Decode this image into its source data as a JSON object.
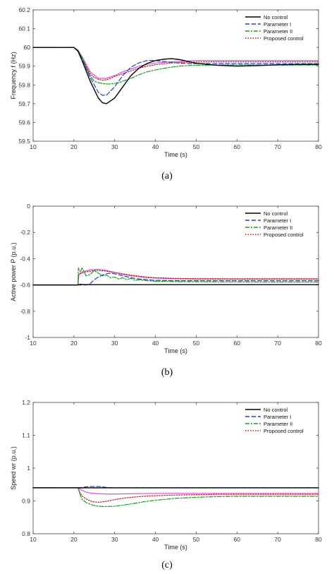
{
  "chart_data": [
    {
      "type": "line",
      "panel_label": "(a)",
      "title": "",
      "xlabel": "Time (s)",
      "ylabel": "Frequency f (Hz)",
      "xlim": [
        10,
        80
      ],
      "ylim": [
        59.5,
        60.2
      ],
      "xticks": [
        10,
        20,
        30,
        40,
        50,
        60,
        70,
        80
      ],
      "yticks": [
        59.5,
        59.6,
        59.7,
        59.8,
        59.9,
        60,
        60.1,
        60.2
      ],
      "ytick_labels": [
        "59.5",
        "59.6",
        "59.7",
        "59.8",
        "59.9",
        "60",
        "60.1",
        "60.2"
      ],
      "legend_position": "top-right",
      "grid": false,
      "series": [
        {
          "name": "No control",
          "color": "#000000",
          "style": "solid",
          "x": [
            10,
            20,
            21,
            22,
            24,
            26,
            27,
            28,
            30,
            32,
            34,
            36,
            38,
            40,
            42,
            44,
            46,
            48,
            50,
            55,
            60,
            65,
            70,
            75,
            80
          ],
          "y": [
            60.0,
            60.0,
            59.98,
            59.93,
            59.82,
            59.73,
            59.705,
            59.7,
            59.73,
            59.79,
            59.85,
            59.89,
            59.915,
            59.93,
            59.937,
            59.94,
            59.935,
            59.925,
            59.915,
            59.905,
            59.9,
            59.903,
            59.907,
            59.909,
            59.91
          ]
        },
        {
          "name": "Parameter I",
          "color": "#1f3fd0",
          "style": "dash",
          "x": [
            10,
            20,
            21,
            22,
            24,
            26,
            27,
            28,
            30,
            32,
            34,
            36,
            38,
            40,
            42,
            44,
            46,
            48,
            50,
            55,
            60,
            65,
            70,
            75,
            80
          ],
          "y": [
            60.0,
            60.0,
            59.98,
            59.94,
            59.84,
            59.76,
            59.745,
            59.745,
            59.79,
            59.85,
            59.895,
            59.918,
            59.93,
            59.93,
            59.925,
            59.92,
            59.916,
            59.914,
            59.914,
            59.913,
            59.913,
            59.913,
            59.913,
            59.913,
            59.913
          ]
        },
        {
          "name": "Parameter II",
          "color": "#1c9e1c",
          "style": "dashdot",
          "x": [
            10,
            20,
            21,
            22,
            23,
            24,
            25,
            26,
            27,
            28,
            29,
            30,
            31,
            32,
            34,
            36,
            38,
            40,
            42,
            44,
            46,
            48,
            50,
            55,
            60,
            65,
            70,
            75,
            80
          ],
          "y": [
            60.0,
            60.0,
            59.985,
            59.95,
            59.89,
            59.85,
            59.82,
            59.812,
            59.808,
            59.805,
            59.805,
            59.808,
            59.812,
            59.82,
            59.835,
            59.855,
            59.87,
            59.88,
            59.888,
            59.895,
            59.9,
            59.903,
            59.905,
            59.906,
            59.906,
            59.906,
            59.906,
            59.906,
            59.906
          ]
        },
        {
          "name": "Proposed control",
          "color": "#c0181c",
          "style": "dot",
          "x": [
            10,
            20,
            21,
            22,
            23,
            24,
            25,
            26,
            27,
            28,
            29,
            30,
            32,
            34,
            36,
            38,
            40,
            42,
            44,
            46,
            50,
            55,
            60,
            65,
            70,
            75,
            80
          ],
          "y": [
            60.0,
            60.0,
            59.985,
            59.95,
            59.9,
            59.86,
            59.84,
            59.83,
            59.825,
            59.828,
            59.835,
            59.845,
            59.86,
            59.875,
            59.89,
            59.9,
            59.908,
            59.913,
            59.917,
            59.92,
            59.922,
            59.923,
            59.923,
            59.923,
            59.923,
            59.923,
            59.923
          ]
        },
        {
          "name": "",
          "color": "#e04fd6",
          "style": "solid",
          "legend": false,
          "x": [
            10,
            20,
            21,
            22,
            24,
            26,
            28,
            30,
            32,
            34,
            36,
            38,
            40,
            45,
            50,
            55,
            60,
            65,
            70,
            75,
            80
          ],
          "y": [
            60.0,
            60.0,
            59.985,
            59.95,
            59.87,
            59.835,
            59.835,
            59.85,
            59.87,
            59.885,
            59.9,
            59.91,
            59.917,
            59.925,
            59.93,
            59.93,
            59.93,
            59.93,
            59.93,
            59.93,
            59.93
          ]
        }
      ]
    },
    {
      "type": "line",
      "panel_label": "(b)",
      "title": "",
      "xlabel": "Time (s)",
      "ylabel": "Active power P (p.u.)",
      "xlim": [
        10,
        80
      ],
      "ylim": [
        -1,
        0
      ],
      "xticks": [
        10,
        20,
        30,
        40,
        50,
        60,
        70,
        80
      ],
      "yticks": [
        -1,
        -0.8,
        -0.6,
        -0.4,
        -0.2,
        0
      ],
      "ytick_labels": [
        "-1",
        "-0.8",
        "-0.6",
        "-0.4",
        "-0.2",
        "0"
      ],
      "legend_position": "top-right",
      "grid": false,
      "series": [
        {
          "name": "No control",
          "color": "#000000",
          "style": "solid",
          "x": [
            10,
            21,
            21.5,
            23,
            25,
            30,
            35,
            40,
            50,
            60,
            70,
            80
          ],
          "y": [
            -0.6,
            -0.6,
            -0.596,
            -0.598,
            -0.598,
            -0.598,
            -0.598,
            -0.598,
            -0.598,
            -0.598,
            -0.598,
            -0.598
          ]
        },
        {
          "name": "Parameter I",
          "color": "#1f3fd0",
          "style": "dash",
          "x": [
            10,
            21,
            22,
            23,
            24,
            25,
            26,
            27,
            28,
            29,
            30,
            32,
            34,
            36,
            40,
            45,
            50,
            60,
            70,
            80
          ],
          "y": [
            -0.6,
            -0.6,
            -0.6,
            -0.6,
            -0.59,
            -0.56,
            -0.54,
            -0.525,
            -0.515,
            -0.51,
            -0.515,
            -0.53,
            -0.545,
            -0.555,
            -0.565,
            -0.568,
            -0.568,
            -0.568,
            -0.568,
            -0.568
          ]
        },
        {
          "name": "Parameter II",
          "color": "#1c9e1c",
          "style": "dashdot",
          "x": [
            10,
            21,
            21.1,
            21.6,
            22,
            22.5,
            23,
            24,
            25,
            26,
            27,
            28,
            29,
            30,
            31,
            32,
            33,
            34,
            35,
            36,
            38,
            40,
            45,
            50,
            55,
            60,
            65,
            70,
            75,
            80
          ],
          "y": [
            -0.6,
            -0.6,
            -0.47,
            -0.5,
            -0.47,
            -0.5,
            -0.53,
            -0.52,
            -0.49,
            -0.51,
            -0.53,
            -0.525,
            -0.545,
            -0.54,
            -0.555,
            -0.545,
            -0.56,
            -0.55,
            -0.565,
            -0.56,
            -0.568,
            -0.572,
            -0.575,
            -0.576,
            -0.577,
            -0.577,
            -0.578,
            -0.578,
            -0.578,
            -0.578
          ]
        },
        {
          "name": "Proposed control",
          "color": "#c0181c",
          "style": "dot",
          "x": [
            10,
            21,
            21.2,
            22,
            23,
            24,
            25,
            26,
            28,
            30,
            32,
            34,
            36,
            38,
            40,
            45,
            50,
            60,
            70,
            80
          ],
          "y": [
            -0.6,
            -0.6,
            -0.52,
            -0.51,
            -0.5,
            -0.495,
            -0.49,
            -0.49,
            -0.495,
            -0.505,
            -0.515,
            -0.525,
            -0.533,
            -0.54,
            -0.545,
            -0.55,
            -0.552,
            -0.553,
            -0.553,
            -0.553
          ]
        },
        {
          "name": "",
          "color": "#e04fd6",
          "style": "solid",
          "legend": false,
          "x": [
            10,
            21,
            21.2,
            22,
            24,
            26,
            28,
            30,
            32,
            34,
            36,
            38,
            40,
            45,
            50,
            60,
            70,
            80
          ],
          "y": [
            -0.6,
            -0.6,
            -0.52,
            -0.5,
            -0.485,
            -0.48,
            -0.49,
            -0.505,
            -0.52,
            -0.53,
            -0.538,
            -0.544,
            -0.548,
            -0.553,
            -0.555,
            -0.556,
            -0.556,
            -0.556
          ]
        }
      ]
    },
    {
      "type": "line",
      "panel_label": "(c)",
      "title": "",
      "xlabel": "Time (s)",
      "ylabel": "Speed wr (p.u.)",
      "xlim": [
        10,
        80
      ],
      "ylim": [
        0.8,
        1.2
      ],
      "xticks": [
        10,
        20,
        30,
        40,
        50,
        60,
        70,
        80
      ],
      "yticks": [
        0.8,
        0.9,
        1.0,
        1.1,
        1.2
      ],
      "ytick_labels": [
        "0.8",
        "0.9",
        "1",
        "1.1",
        "1.2"
      ],
      "legend_position": "top-right",
      "grid": false,
      "series": [
        {
          "name": "No control",
          "color": "#000000",
          "style": "solid",
          "x": [
            10,
            20,
            30,
            40,
            50,
            60,
            70,
            80
          ],
          "y": [
            0.94,
            0.94,
            0.94,
            0.94,
            0.94,
            0.94,
            0.94,
            0.94
          ]
        },
        {
          "name": "Parameter I",
          "color": "#1f3fd0",
          "style": "dash",
          "x": [
            10,
            21,
            22,
            23,
            24,
            25,
            26,
            27,
            28,
            30,
            40,
            50,
            60,
            70,
            80
          ],
          "y": [
            0.94,
            0.94,
            0.941,
            0.943,
            0.944,
            0.944,
            0.944,
            0.943,
            0.941,
            0.94,
            0.94,
            0.94,
            0.94,
            0.94,
            0.94
          ]
        },
        {
          "name": "Parameter II",
          "color": "#1c9e1c",
          "style": "dashdot",
          "x": [
            10,
            21,
            21.5,
            22,
            23,
            24,
            25,
            26,
            27,
            28,
            30,
            32,
            34,
            36,
            38,
            40,
            45,
            50,
            55,
            60,
            65,
            70,
            75,
            80
          ],
          "y": [
            0.94,
            0.94,
            0.92,
            0.905,
            0.895,
            0.89,
            0.886,
            0.884,
            0.883,
            0.883,
            0.884,
            0.887,
            0.891,
            0.895,
            0.899,
            0.902,
            0.908,
            0.911,
            0.913,
            0.914,
            0.914,
            0.914,
            0.914,
            0.914
          ]
        },
        {
          "name": "Proposed control",
          "color": "#c0181c",
          "style": "dot",
          "x": [
            10,
            21,
            21.5,
            22,
            23,
            24,
            25,
            26,
            27,
            28,
            30,
            32,
            34,
            36,
            38,
            40,
            45,
            50,
            55,
            60,
            65,
            70,
            75,
            80
          ],
          "y": [
            0.94,
            0.94,
            0.925,
            0.915,
            0.906,
            0.9,
            0.897,
            0.896,
            0.897,
            0.899,
            0.904,
            0.908,
            0.911,
            0.913,
            0.915,
            0.916,
            0.918,
            0.919,
            0.92,
            0.92,
            0.92,
            0.92,
            0.92,
            0.92
          ]
        },
        {
          "name": "",
          "color": "#e04fd6",
          "style": "solid",
          "legend": false,
          "x": [
            10,
            21,
            22,
            23,
            24,
            26,
            28,
            30,
            35,
            40,
            45,
            50,
            60,
            70,
            80
          ],
          "y": [
            0.94,
            0.94,
            0.932,
            0.927,
            0.924,
            0.922,
            0.921,
            0.921,
            0.922,
            0.923,
            0.923,
            0.923,
            0.923,
            0.923,
            0.923
          ]
        }
      ]
    }
  ]
}
